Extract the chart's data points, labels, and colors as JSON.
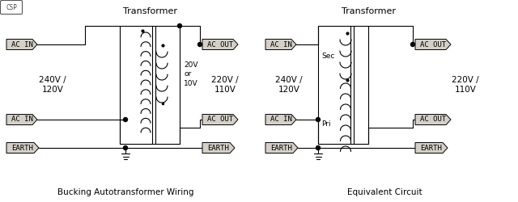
{
  "bg_color": "#ffffff",
  "label_bg": "#d4d0c8",
  "wire_color": "#000000",
  "title_fontsize": 8,
  "text_fontsize": 7.5,
  "left_title": "Transformer",
  "right_title": "Transformer",
  "left_caption": "Bucking Autotransformer Wiring",
  "right_caption": "Equivalent Circuit",
  "left_label_240": "240V /\n120V",
  "left_label_220": "220V /\n110V",
  "right_label_240": "240V /\n120V",
  "right_label_220": "220V /\n110V",
  "left_label_20v": "20V\nor\n10V",
  "right_sec_label": "Sec",
  "right_pri_label": "Pri"
}
